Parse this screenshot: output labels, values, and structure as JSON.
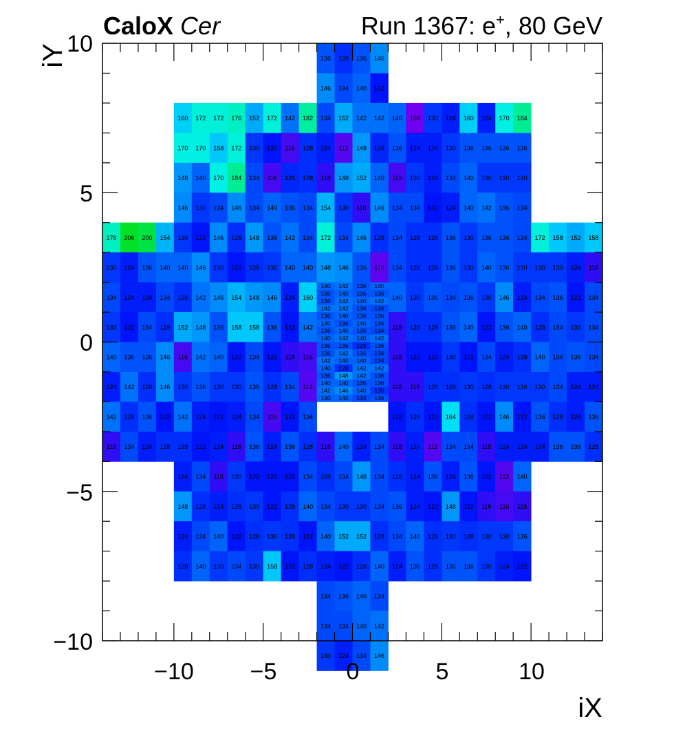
{
  "header": {
    "brand": "CaloX",
    "channel": "Cer",
    "run_label": "Run 1367: e",
    "run_sup": "+",
    "run_suffix": ", 80 GeV"
  },
  "chart_data": {
    "type": "heatmap",
    "xlabel": "iX",
    "ylabel": "iY",
    "xlim": [
      -14,
      14
    ],
    "ylim": [
      -10,
      10
    ],
    "x_ticks": [
      "−10",
      "−5",
      "0",
      "5",
      "10"
    ],
    "y_ticks": [
      "−10",
      "−5",
      "0",
      "5",
      "10"
    ],
    "grid": false,
    "color_scale": "blue-to-green",
    "value_range": [
      104,
      206
    ],
    "coarse_columns_x": [
      -14,
      -13,
      -12,
      -11,
      -10,
      -9,
      -8,
      -7,
      -6,
      -5,
      -4,
      -3,
      -2,
      2,
      3,
      4,
      5,
      6,
      7,
      8,
      9,
      10,
      11,
      12,
      13
    ],
    "coarse_rows": [
      {
        "y": 8,
        "x0": -10,
        "values": [
          160,
          172,
          172,
          176,
          152,
          172,
          142,
          182,
          null,
          null,
          null,
          null,
          140,
          104,
          130,
          124,
          160,
          124,
          170,
          184
        ]
      },
      {
        "y": 7,
        "x0": -10,
        "values": [
          170,
          170,
          158,
          172,
          130,
          122,
          116,
          128,
          null,
          null,
          null,
          null,
          136,
          124,
          124,
          130,
          136,
          136,
          136,
          136
        ]
      },
      {
        "y": 6,
        "x0": -10,
        "values": [
          148,
          140,
          170,
          184,
          134,
          116,
          126,
          128,
          null,
          null,
          null,
          null,
          116,
          130,
          124,
          134,
          140,
          130,
          130,
          130
        ]
      },
      {
        "y": 5,
        "x0": -10,
        "values": [
          146,
          130,
          134,
          146,
          134,
          140,
          136,
          134,
          null,
          null,
          null,
          null,
          134,
          134,
          122,
          124,
          140,
          142,
          136,
          134
        ]
      },
      {
        "y": 4,
        "x0": -14,
        "values": [
          176,
          206,
          200,
          154,
          130,
          122,
          146,
          128,
          148,
          136,
          142,
          134,
          null,
          null,
          null,
          null,
          134,
          128,
          128,
          136,
          130,
          136,
          136,
          134,
          172,
          158,
          152,
          158
        ]
      },
      {
        "y": 3,
        "x0": -14,
        "values": [
          130,
          124,
          136,
          140,
          140,
          146,
          130,
          122,
          128,
          130,
          140,
          140,
          null,
          null,
          null,
          null,
          134,
          128,
          128,
          136,
          130,
          140,
          136,
          130,
          130,
          130,
          124,
          118
        ]
      },
      {
        "y": 2,
        "x0": -14,
        "values": [
          134,
          124,
          124,
          134,
          128,
          142,
          146,
          154,
          148,
          146,
          124,
          160,
          null,
          null,
          null,
          null,
          140,
          130,
          136,
          134,
          136,
          130,
          146,
          124,
          134,
          136,
          122,
          134
        ]
      },
      {
        "y": 1,
        "x0": -14,
        "values": [
          130,
          122,
          134,
          128,
          152,
          148,
          136,
          158,
          158,
          136,
          122,
          142,
          null,
          null,
          null,
          null,
          118,
          128,
          128,
          136,
          140,
          122,
          136,
          140,
          128,
          134,
          130,
          134
        ]
      },
      {
        "y": 0,
        "x0": -14,
        "values": [
          140,
          136,
          136,
          146,
          116,
          142,
          140,
          122,
          134,
          122,
          118,
          116,
          null,
          null,
          null,
          null,
          118,
          122,
          122,
          130,
          122,
          134,
          124,
          128,
          140,
          134,
          136,
          134
        ]
      },
      {
        "y": -1,
        "x0": -14,
        "values": [
          124,
          142,
          128,
          146,
          130,
          136,
          130,
          130,
          136,
          128,
          134,
          112,
          null,
          null,
          null,
          null,
          118,
          118,
          128,
          128,
          130,
          128,
          130,
          130,
          130,
          134,
          124,
          124
        ]
      },
      {
        "y": -2,
        "x0": -14,
        "values": [
          142,
          128,
          136,
          122,
          142,
          124,
          122,
          124,
          134,
          116,
          122,
          134,
          null,
          null,
          null,
          null,
          122,
          128,
          122,
          164,
          128,
          122,
          146,
          122,
          136,
          128,
          124,
          136
        ]
      },
      {
        "y": -3,
        "x0": -14,
        "values": [
          118,
          134,
          124,
          128,
          128,
          122,
          124,
          118,
          136,
          124,
          136,
          128,
          null,
          null,
          null,
          null,
          118,
          124,
          112,
          134,
          134,
          118,
          124,
          124,
          124,
          136,
          136,
          128
        ]
      },
      {
        "y": -4,
        "x0": -10,
        "values": [
          124,
          134,
          118,
          130,
          122,
          122,
          122,
          134,
          null,
          null,
          null,
          null,
          128,
          124,
          136,
          124,
          136,
          122,
          112,
          140
        ]
      },
      {
        "y": -5,
        "x0": -10,
        "values": [
          148,
          128,
          124,
          128,
          130,
          122,
          128,
          140,
          null,
          null,
          null,
          null,
          136,
          124,
          122,
          148,
          122,
          118,
          116,
          118
        ]
      },
      {
        "y": -6,
        "x0": -10,
        "values": [
          124,
          134,
          140,
          122,
          128,
          130,
          128,
          122,
          null,
          null,
          null,
          null,
          134,
          140,
          128,
          130,
          128,
          130,
          130,
          136
        ]
      },
      {
        "y": -7,
        "x0": -10,
        "values": [
          128,
          140,
          130,
          134,
          130,
          158,
          122,
          128,
          null,
          null,
          null,
          null,
          124,
          136,
          128,
          136,
          136,
          130,
          124,
          122
        ]
      }
    ],
    "center_column": {
      "x_cells": [
        -2,
        -1,
        0,
        1
      ],
      "rows": [
        {
          "y": 10,
          "values": [
            136,
            128,
            136,
            146
          ]
        },
        {
          "y": 9,
          "values": [
            146,
            134,
            140,
            122
          ]
        },
        {
          "y": 8,
          "values": [
            134,
            152,
            142,
            142
          ]
        },
        {
          "y": 7,
          "values": [
            124,
            112,
            148,
            126
          ]
        },
        {
          "y": 6,
          "values": [
            118,
            148,
            152,
            140
          ]
        },
        {
          "y": 5,
          "values": [
            154,
            130,
            118,
            146
          ]
        },
        {
          "y": 4,
          "values": [
            172,
            134,
            146,
            128
          ]
        },
        {
          "y": 3,
          "values": [
            148,
            146,
            136,
            110
          ]
        },
        {
          "y": -3,
          "values": [
            118,
            140,
            124,
            134
          ]
        },
        {
          "y": -4,
          "values": [
            128,
            134,
            148,
            134
          ]
        },
        {
          "y": -5,
          "values": [
            134,
            130,
            130,
            134
          ]
        },
        {
          "y": -6,
          "values": [
            140,
            152,
            152,
            128
          ]
        },
        {
          "y": -7,
          "values": [
            124,
            122,
            128,
            140
          ]
        },
        {
          "y": -8,
          "values": [
            134,
            136,
            140,
            134
          ]
        },
        {
          "y": -9,
          "values": [
            134,
            134,
            140,
            142
          ]
        },
        {
          "y": -10,
          "values": [
            130,
            124,
            134,
            146
          ]
        }
      ]
    },
    "fine_grid": {
      "x_cells": [
        -2,
        -1,
        0,
        1
      ],
      "y_top": 2,
      "y_bottom": -2,
      "rows": [
        [
          140,
          142,
          136,
          140
        ],
        [
          136,
          140,
          136,
          136
        ],
        [
          136,
          142,
          140,
          142
        ],
        [
          142,
          142,
          136,
          134
        ],
        [
          136,
          140,
          136,
          136
        ],
        [
          140,
          136,
          140,
          136
        ],
        [
          136,
          140,
          136,
          134
        ],
        [
          140,
          142,
          140,
          142
        ],
        [
          136,
          136,
          128,
          136
        ],
        [
          136,
          142,
          136,
          134
        ],
        [
          142,
          140,
          140,
          134
        ],
        [
          140,
          128,
          142,
          142
        ],
        [
          136,
          148,
          142,
          136
        ],
        [
          140,
          140,
          136,
          136
        ],
        [
          142,
          146,
          140,
          130
        ],
        [
          140,
          140,
          134,
          136
        ]
      ]
    }
  }
}
